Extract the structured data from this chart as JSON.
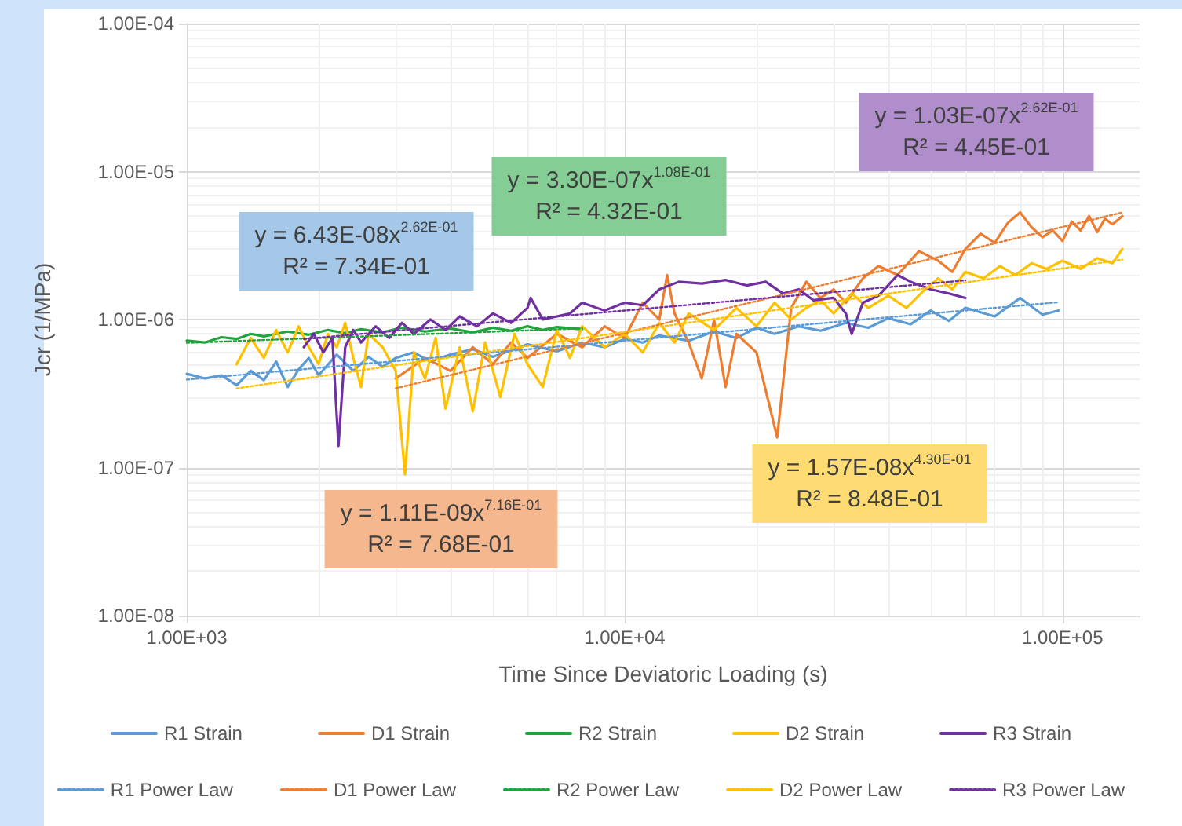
{
  "chart_data": {
    "type": "line",
    "xlabel": "Time Since Deviatoric Loading (s)",
    "ylabel": "Jcr (1/MPa)",
    "log": "xy",
    "grid": true,
    "legend": "bottom",
    "marker": "none",
    "xlim": [
      1000,
      150000
    ],
    "xticks": [
      {
        "value": 1000,
        "label": "1.00E+03"
      },
      {
        "value": 10000,
        "label": "1.00E+04"
      },
      {
        "value": 100000,
        "label": "1.00E+05"
      }
    ],
    "ylim": [
      1e-08,
      0.0001
    ],
    "yticks": [
      {
        "value": 1e-08,
        "label": "1.00E-08"
      },
      {
        "value": 1e-07,
        "label": "1.00E-07"
      },
      {
        "value": 1e-06,
        "label": "1.00E-06"
      },
      {
        "value": 1e-05,
        "label": "1.00E-05"
      },
      {
        "value": 0.0001,
        "label": "1.00E-04"
      }
    ],
    "annotations": [
      "y = 6.43E-08x$^{2.62E-01}$\nR² = 7.34E-01",
      "y = 1.11E-09x$^{7.16E-01}$\nR² = 7.68E-01",
      "y = 3.30E-07x$^{1.08E-01}$\nR² = 4.32E-01",
      "y = 1.57E-08x$^{4.30E-01}$\nR² = 8.48E-01",
      "y = 1.03E-07x$^{2.62E-01}$\nR² = 4.45E-01"
    ],
    "series": [
      {
        "name": "R1 Strain",
        "color": "#5b9bd5",
        "line_style": "solid",
        "x": [
          1000,
          1100,
          1200,
          1300,
          1400,
          1500,
          1600,
          1700,
          1800,
          1900,
          2000,
          2200,
          2400,
          2600,
          2800,
          3000,
          3300,
          3600,
          4000,
          4500,
          5000,
          5500,
          6000,
          7000,
          8000,
          9000,
          10000,
          11000,
          12000,
          14000,
          16000,
          18000,
          20000,
          22000,
          25000,
          28000,
          32000,
          36000,
          40000,
          45000,
          50000,
          55000,
          60000,
          70000,
          80000,
          90000,
          98000
        ],
        "values": [
          4.3e-07,
          4e-07,
          4.2e-07,
          3.6e-07,
          4.5e-07,
          3.9e-07,
          5.2e-07,
          3.5e-07,
          4.6e-07,
          5.5e-07,
          4.2e-07,
          5.8e-07,
          4.5e-07,
          5.6e-07,
          4.8e-07,
          5.5e-07,
          6e-07,
          5.2e-07,
          5.8e-07,
          6.3e-07,
          5.6e-07,
          6.2e-07,
          6.8e-07,
          6.1e-07,
          7e-07,
          6.5e-07,
          7.4e-07,
          7e-07,
          7.8e-07,
          7.2e-07,
          8.3e-07,
          7.5e-07,
          8.8e-07,
          8e-07,
          9e-07,
          8.4e-07,
          9.5e-07,
          8.8e-07,
          1.02e-06,
          9.3e-07,
          1.15e-06,
          9.8e-07,
          1.2e-06,
          1.05e-06,
          1.4e-06,
          1.08e-06,
          1.15e-06
        ]
      },
      {
        "name": "D1 Strain",
        "color": "#ed7d31",
        "line_style": "solid",
        "x": [
          3000,
          3500,
          4000,
          4500,
          5000,
          5500,
          6000,
          7000,
          8000,
          9000,
          10000,
          11000,
          12000,
          12500,
          13000,
          14000,
          15000,
          16000,
          17000,
          18000,
          20000,
          22300,
          24000,
          26000,
          28000,
          30000,
          32000,
          35000,
          38000,
          42000,
          47000,
          52000,
          56000,
          60000,
          65000,
          70000,
          75000,
          80000,
          85000,
          90000,
          95000,
          100000,
          105000,
          110000,
          115000,
          120000,
          125000,
          130000,
          137000
        ],
        "values": [
          4e-07,
          5.5e-07,
          4.5e-07,
          6.5e-07,
          5e-07,
          7e-07,
          5.5e-07,
          8e-07,
          6.5e-07,
          9e-07,
          7.5e-07,
          1.3e-06,
          1e-06,
          2e-06,
          1.1e-06,
          7e-07,
          4e-07,
          1e-06,
          3.5e-07,
          8e-07,
          6e-07,
          1.6e-07,
          1.2e-06,
          1.8e-06,
          1.4e-06,
          1.6e-06,
          1.3e-06,
          1.9e-06,
          2.3e-06,
          2e-06,
          2.9e-06,
          2.5e-06,
          2.1e-06,
          3e-06,
          3.8e-06,
          3.3e-06,
          4.5e-06,
          5.3e-06,
          4.2e-06,
          3.6e-06,
          4e-06,
          3.4e-06,
          4.6e-06,
          4e-06,
          5e-06,
          3.9e-06,
          4.8e-06,
          4.4e-06,
          5e-06
        ]
      },
      {
        "name": "R2 Strain",
        "color": "#1fa43c",
        "line_style": "solid",
        "x": [
          1000,
          1100,
          1200,
          1300,
          1400,
          1500,
          1700,
          1900,
          2100,
          2300,
          2500,
          2800,
          3100,
          3500,
          4000,
          4500,
          5000,
          5500,
          6000,
          6500,
          7000,
          8000
        ],
        "values": [
          7.2e-07,
          7e-07,
          7.6e-07,
          7.4e-07,
          8e-07,
          7.7e-07,
          8.3e-07,
          7.9e-07,
          8.5e-07,
          8.1e-07,
          8.6e-07,
          8.2e-07,
          8.8e-07,
          8.3e-07,
          8.7e-07,
          8.2e-07,
          8.8e-07,
          8.4e-07,
          9e-07,
          8.5e-07,
          8.9e-07,
          8.6e-07
        ]
      },
      {
        "name": "D2 Strain",
        "color": "#ffc000",
        "line_style": "solid",
        "x": [
          1300,
          1400,
          1500,
          1600,
          1700,
          1800,
          1900,
          2000,
          2100,
          2200,
          2300,
          2400,
          2500,
          2600,
          2800,
          3000,
          3150,
          3300,
          3500,
          3700,
          3900,
          4200,
          4500,
          4800,
          5200,
          5600,
          6000,
          6500,
          7000,
          7500,
          8000,
          9000,
          10000,
          11000,
          12000,
          13000,
          14000,
          16000,
          18000,
          20000,
          22000,
          24000,
          26000,
          28000,
          30000,
          33000,
          36000,
          40000,
          44000,
          48000,
          52000,
          56000,
          60000,
          66000,
          72000,
          78000,
          85000,
          92000,
          100000,
          110000,
          120000,
          130000,
          137000
        ],
        "values": [
          5e-07,
          7.5e-07,
          5.5e-07,
          8.5e-07,
          6e-07,
          9e-07,
          6.5e-07,
          5e-07,
          8e-07,
          6.5e-07,
          9.5e-07,
          5.5e-07,
          3.5e-07,
          8e-07,
          6.5e-07,
          4.5e-07,
          9e-08,
          6e-07,
          4e-07,
          7.5e-07,
          2.5e-07,
          6.5e-07,
          2.4e-07,
          7e-07,
          3e-07,
          8e-07,
          5e-07,
          3.5e-07,
          8.5e-07,
          5.5e-07,
          9e-07,
          6.5e-07,
          8e-07,
          6e-07,
          9.5e-07,
          7e-07,
          1.1e-06,
          8.5e-07,
          1.2e-06,
          9e-07,
          1.3e-06,
          1e-06,
          1.2e-06,
          1.35e-06,
          1.1e-06,
          1.5e-06,
          1.2e-06,
          1.45e-06,
          1.2e-06,
          1.55e-06,
          1.9e-06,
          1.6e-06,
          2.1e-06,
          1.9e-06,
          2.3e-06,
          2e-06,
          2.4e-06,
          2.2e-06,
          2.5e-06,
          2.2e-06,
          2.6e-06,
          2.4e-06,
          3e-06
        ]
      },
      {
        "name": "R3 Strain",
        "color": "#7030a0",
        "line_style": "solid",
        "x": [
          1850,
          1950,
          2050,
          2150,
          2220,
          2300,
          2400,
          2500,
          2700,
          2900,
          3100,
          3300,
          3600,
          3900,
          4200,
          4600,
          5000,
          5500,
          6000,
          6100,
          6500,
          7500,
          8000,
          9000,
          10000,
          11000,
          12000,
          13300,
          15000,
          17000,
          19000,
          21000,
          23000,
          25000,
          27000,
          30000,
          32000,
          33000,
          35000,
          38000,
          42000,
          45000,
          50000,
          55000,
          60000
        ],
        "values": [
          6.5e-07,
          8e-07,
          6e-07,
          7.5e-07,
          1.4e-07,
          6.5e-07,
          8.5e-07,
          7e-07,
          9e-07,
          7.5e-07,
          9.5e-07,
          8e-07,
          1e-06,
          8.5e-07,
          1.05e-06,
          9e-07,
          1.1e-06,
          9.5e-07,
          1.2e-06,
          1.4e-06,
          1e-06,
          1.1e-06,
          1.3e-06,
          1.15e-06,
          1.3e-06,
          1.25e-06,
          1.6e-06,
          1.8e-06,
          1.75e-06,
          1.85e-06,
          1.7e-06,
          1.8e-06,
          1.5e-06,
          1.6e-06,
          1.35e-06,
          1.4e-06,
          1.1e-06,
          8e-07,
          1.3e-06,
          1.45e-06,
          2e-06,
          1.8e-06,
          1.6e-06,
          1.5e-06,
          1.4e-06
        ]
      },
      {
        "name": "R1 Power Law",
        "color": "#5b9bd5",
        "line_style": "dotted",
        "x": [
          1000,
          98000
        ],
        "values": [
          3.93e-07,
          1.31e-06
        ]
      },
      {
        "name": "D1 Power Law",
        "color": "#ed7d31",
        "line_style": "dotted",
        "x": [
          3000,
          137000
        ],
        "values": [
          3.43e-07,
          5.29e-06
        ]
      },
      {
        "name": "R2 Power Law",
        "color": "#1fa43c",
        "line_style": "dotted",
        "x": [
          1000,
          8000
        ],
        "values": [
          6.96e-07,
          8.71e-07
        ]
      },
      {
        "name": "D2 Power Law",
        "color": "#ffc000",
        "line_style": "dotted",
        "x": [
          1300,
          137000
        ],
        "values": [
          3.43e-07,
          2.54e-06
        ]
      },
      {
        "name": "R3 Power Law",
        "color": "#7030a0",
        "line_style": "dotted",
        "x": [
          1850,
          60000
        ],
        "values": [
          7.39e-07,
          1.84e-06
        ]
      }
    ]
  }
}
